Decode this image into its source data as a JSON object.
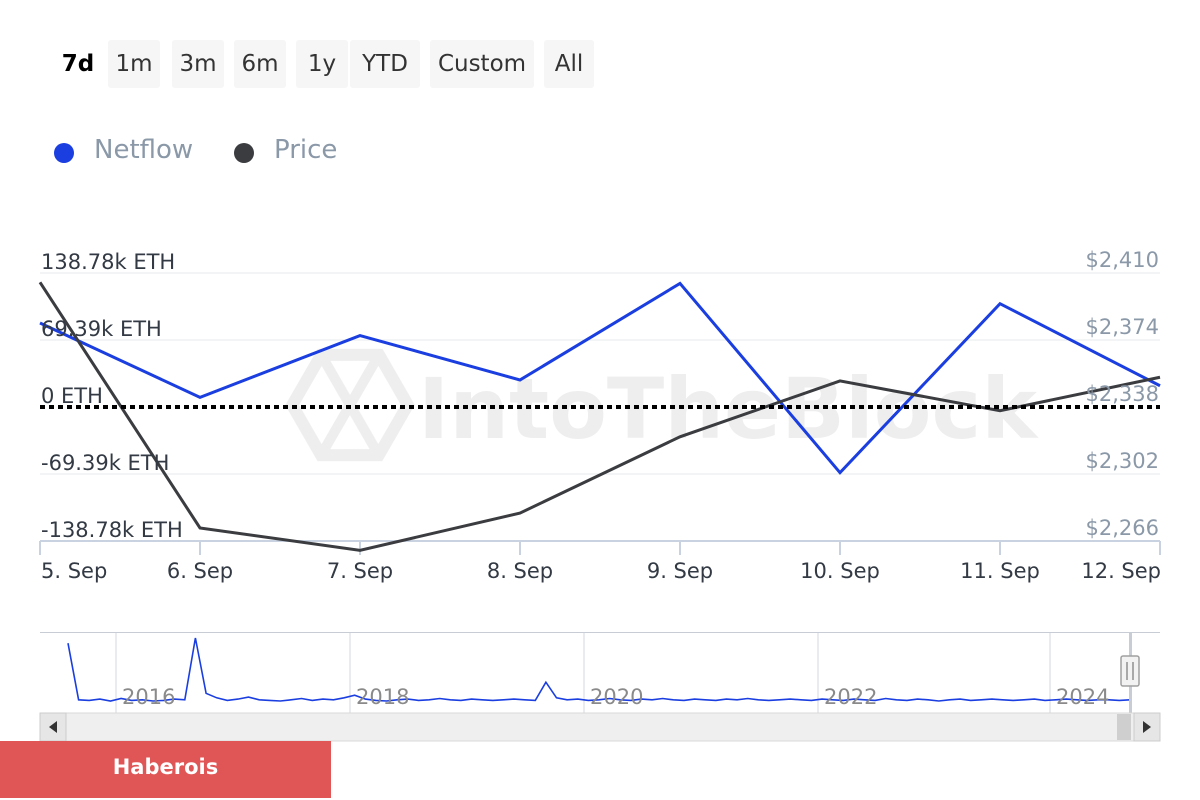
{
  "range_selector": {
    "buttons": [
      "7d",
      "1m",
      "3m",
      "6m",
      "1y",
      "YTD",
      "Custom",
      "All"
    ],
    "active": "7d"
  },
  "legend": {
    "items": [
      {
        "name": "Netflow",
        "color": "#1a3ee0"
      },
      {
        "name": "Price",
        "color": "#3a3c40"
      }
    ]
  },
  "watermark": "IntoTheBlock",
  "chart_data": {
    "type": "line",
    "categories": [
      "5. Sep",
      "6. Sep",
      "7. Sep",
      "8. Sep",
      "9. Sep",
      "10. Sep",
      "11. Sep",
      "12. Sep"
    ],
    "series": [
      {
        "name": "Netflow",
        "axis": "left",
        "color": "#1a3ee0",
        "values": [
          87000,
          10000,
          74000,
          28000,
          128000,
          -68000,
          107000,
          22000
        ]
      },
      {
        "name": "Price",
        "axis": "right",
        "color": "#3a3c40",
        "values": [
          2405,
          2273,
          2261,
          2281,
          2322,
          2352,
          2336,
          2354
        ]
      }
    ],
    "y_left": {
      "ticks": [
        138780,
        69390,
        0,
        -69390,
        -138780
      ],
      "tick_labels": [
        "138.78k ETH",
        "69.39k ETH",
        "0 ETH",
        "-69.39k ETH",
        "-138.78k ETH"
      ],
      "ylim": [
        -138780,
        138780
      ]
    },
    "y_right": {
      "ticks": [
        2410,
        2374,
        2338,
        2302,
        2266
      ],
      "tick_labels": [
        "$2,410",
        "$2,374",
        "$2,338",
        "$2,302",
        "$2,266"
      ],
      "ylim": [
        2266,
        2410
      ]
    },
    "zero_line": true,
    "grid": true,
    "legend_position": "top-left"
  },
  "navigator": {
    "year_labels": [
      "2016",
      "2018",
      "2020",
      "2022",
      "2024"
    ],
    "series_color": "#1a3ee0",
    "values": [
      0.92,
      0.05,
      0.04,
      0.06,
      0.03,
      0.07,
      0.04,
      0.05,
      0.03,
      0.04,
      0.06,
      0.05,
      1.0,
      0.15,
      0.08,
      0.04,
      0.06,
      0.09,
      0.05,
      0.04,
      0.03,
      0.05,
      0.07,
      0.04,
      0.06,
      0.05,
      0.08,
      0.12,
      0.06,
      0.04,
      0.03,
      0.05,
      0.06,
      0.04,
      0.05,
      0.07,
      0.05,
      0.04,
      0.06,
      0.05,
      0.04,
      0.05,
      0.06,
      0.05,
      0.04,
      0.32,
      0.08,
      0.05,
      0.06,
      0.04,
      0.05,
      0.07,
      0.05,
      0.04,
      0.06,
      0.05,
      0.07,
      0.05,
      0.04,
      0.06,
      0.05,
      0.04,
      0.06,
      0.05,
      0.07,
      0.05,
      0.04,
      0.05,
      0.06,
      0.05,
      0.04,
      0.06,
      0.05,
      0.04,
      0.06,
      0.05,
      0.04,
      0.07,
      0.05,
      0.04,
      0.06,
      0.05,
      0.03,
      0.05,
      0.06,
      0.04,
      0.05,
      0.06,
      0.05,
      0.04,
      0.05,
      0.06,
      0.04,
      0.05,
      0.06,
      0.05,
      0.04,
      0.05,
      0.05,
      0.04,
      0.05
    ]
  },
  "banner": {
    "text": "Haberois"
  }
}
